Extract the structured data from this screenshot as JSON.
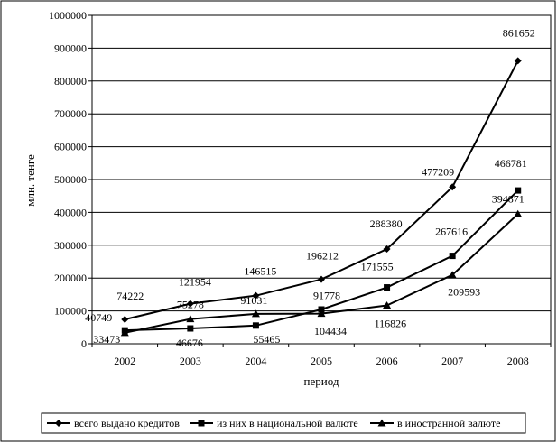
{
  "chart_data": {
    "type": "line",
    "categories": [
      "2002",
      "2003",
      "2004",
      "2005",
      "2006",
      "2007",
      "2008"
    ],
    "ylim": [
      0,
      1000000
    ],
    "yticks": [
      "0",
      "100000",
      "200000",
      "300000",
      "400000",
      "500000",
      "600000",
      "700000",
      "800000",
      "900000",
      "1000000"
    ],
    "ytick_values": [
      0,
      100000,
      200000,
      300000,
      400000,
      500000,
      600000,
      700000,
      800000,
      900000,
      1000000
    ],
    "xlabel": "период",
    "ylabel": "млн. тенге",
    "grid": "horizontal",
    "legend_position": "bottom",
    "series": [
      {
        "name": "всего выдано кредитов",
        "marker": "diamond",
        "values": [
          74222,
          121954,
          146515,
          196212,
          288380,
          477209,
          861652
        ],
        "labels": [
          "74222",
          "121954",
          "146515",
          "196212",
          "288380",
          "477209",
          "861652"
        ]
      },
      {
        "name": "из них в национальной валюте",
        "marker": "square",
        "values": [
          40749,
          46676,
          55465,
          104434,
          171555,
          267616,
          466781
        ],
        "labels": [
          "40749",
          "46676",
          "55465",
          "104434",
          "171555",
          "267616",
          "466781"
        ]
      },
      {
        "name": "в иностранной валюте",
        "marker": "triangle",
        "values": [
          33473,
          75278,
          91031,
          91778,
          116826,
          209593,
          394871
        ],
        "labels": [
          "33473",
          "75278",
          "91031",
          "91778",
          "116826",
          "209593",
          "394871"
        ]
      }
    ]
  }
}
